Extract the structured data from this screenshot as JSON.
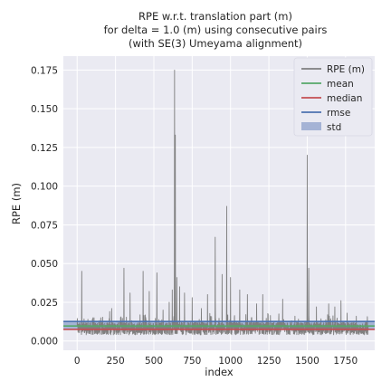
{
  "chart_data": {
    "type": "line",
    "title_lines": [
      "RPE w.r.t. translation part (m)",
      "for delta = 1.0 (m) using consecutive pairs",
      "(with SE(3) Umeyama alignment)"
    ],
    "xlabel": "index",
    "ylabel": "RPE (m)",
    "xlim": [
      -90,
      1940
    ],
    "ylim": [
      -0.006,
      0.184
    ],
    "x_ticks": [
      0,
      250,
      500,
      750,
      1000,
      1250,
      1500,
      1750
    ],
    "x_tick_labels": [
      "0",
      "250",
      "500",
      "750",
      "1000",
      "1250",
      "1500",
      "1750"
    ],
    "y_ticks": [
      0.0,
      0.025,
      0.05,
      0.075,
      0.1,
      0.125,
      0.15,
      0.175
    ],
    "y_tick_labels": [
      "0.000",
      "0.025",
      "0.050",
      "0.075",
      "0.100",
      "0.125",
      "0.150",
      "0.175"
    ],
    "grid": true,
    "legend_position": "top-right",
    "n_points": 1900,
    "noise_base": 0.008,
    "noise_amp": 0.004,
    "spikes": [
      {
        "x": 30,
        "y": 0.045
      },
      {
        "x": 110,
        "y": 0.015
      },
      {
        "x": 225,
        "y": 0.021
      },
      {
        "x": 305,
        "y": 0.047
      },
      {
        "x": 345,
        "y": 0.031
      },
      {
        "x": 430,
        "y": 0.045
      },
      {
        "x": 470,
        "y": 0.032
      },
      {
        "x": 520,
        "y": 0.044
      },
      {
        "x": 560,
        "y": 0.02
      },
      {
        "x": 600,
        "y": 0.025
      },
      {
        "x": 620,
        "y": 0.033
      },
      {
        "x": 635,
        "y": 0.175
      },
      {
        "x": 640,
        "y": 0.133
      },
      {
        "x": 650,
        "y": 0.041
      },
      {
        "x": 668,
        "y": 0.035
      },
      {
        "x": 700,
        "y": 0.031
      },
      {
        "x": 750,
        "y": 0.028
      },
      {
        "x": 810,
        "y": 0.021
      },
      {
        "x": 850,
        "y": 0.03
      },
      {
        "x": 900,
        "y": 0.067
      },
      {
        "x": 945,
        "y": 0.043
      },
      {
        "x": 975,
        "y": 0.087
      },
      {
        "x": 1000,
        "y": 0.041
      },
      {
        "x": 1060,
        "y": 0.033
      },
      {
        "x": 1110,
        "y": 0.03
      },
      {
        "x": 1170,
        "y": 0.024
      },
      {
        "x": 1210,
        "y": 0.03
      },
      {
        "x": 1340,
        "y": 0.027
      },
      {
        "x": 1420,
        "y": 0.016
      },
      {
        "x": 1500,
        "y": 0.12
      },
      {
        "x": 1510,
        "y": 0.047
      },
      {
        "x": 1560,
        "y": 0.022
      },
      {
        "x": 1640,
        "y": 0.024
      },
      {
        "x": 1680,
        "y": 0.022
      },
      {
        "x": 1720,
        "y": 0.026
      },
      {
        "x": 1760,
        "y": 0.018
      },
      {
        "x": 1820,
        "y": 0.016
      }
    ],
    "mean": 0.0097,
    "median": 0.0075,
    "rmse": 0.0126,
    "std_band": [
      0.0077,
      0.0122
    ],
    "series": [
      {
        "name": "RPE (m)",
        "color": "#7f7f7f"
      },
      {
        "name": "mean",
        "color": "#55a868"
      },
      {
        "name": "median",
        "color": "#c44e52"
      },
      {
        "name": "rmse",
        "color": "#4c72b0"
      },
      {
        "name": "std",
        "color": "#8da0cb"
      }
    ],
    "background_color": "#eaeaf2",
    "grid_color": "#ffffff"
  }
}
